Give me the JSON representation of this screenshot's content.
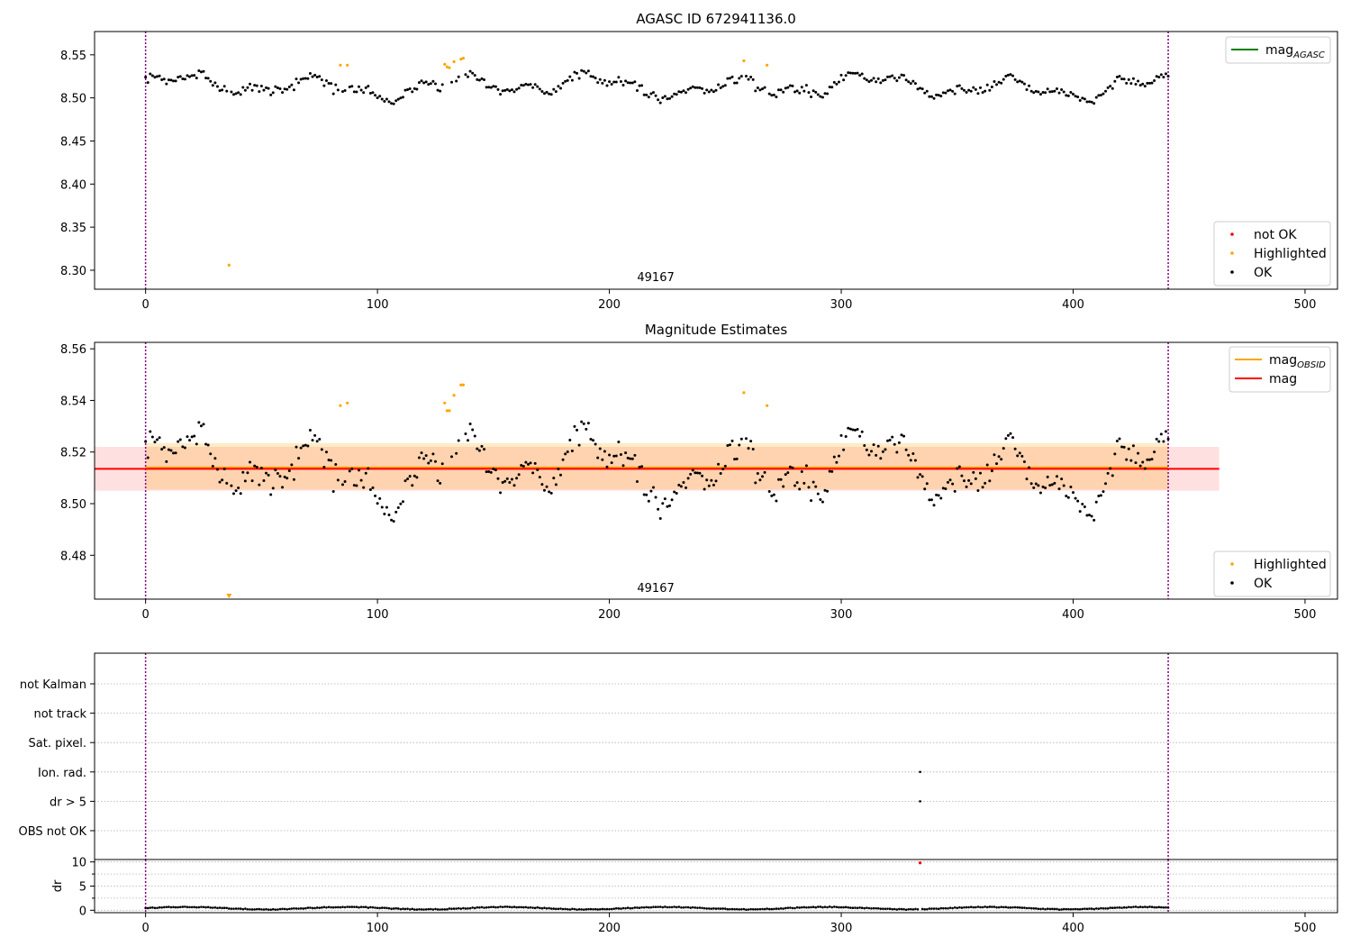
{
  "chart_data": [
    {
      "type": "scatter",
      "title": "AGASC ID 672941136.0",
      "xlabel": "",
      "ylabel": "",
      "xlim": [
        -22,
        514
      ],
      "ylim": [
        8.278,
        8.577
      ],
      "xticks": [
        0,
        100,
        200,
        300,
        400,
        500
      ],
      "yticks": [
        8.3,
        8.35,
        8.4,
        8.45,
        8.5,
        8.55
      ],
      "ytick_labels": [
        "8.30",
        "8.35",
        "8.40",
        "8.45",
        "8.50",
        "8.55"
      ],
      "obsid_label": "49167",
      "obsid_label_x": 220,
      "vlines": [
        0,
        441
      ],
      "lines": [
        {
          "name": "mag_AGASC",
          "color": "#008000",
          "value": null
        }
      ],
      "legend_upper": [
        {
          "label": "mag",
          "sub": "AGASC",
          "color": "#008000",
          "kind": "line"
        }
      ],
      "legend_lower": [
        {
          "label": "not OK",
          "color": "#ff0000",
          "kind": "point"
        },
        {
          "label": "Highlighted",
          "color": "#ffa500",
          "kind": "point"
        },
        {
          "label": "OK",
          "color": "#000000",
          "kind": "point"
        }
      ],
      "highlighted_points": [
        {
          "x": 36,
          "y": 8.306
        },
        {
          "x": 84,
          "y": 8.538
        },
        {
          "x": 87,
          "y": 8.538
        },
        {
          "x": 129,
          "y": 8.539
        },
        {
          "x": 130,
          "y": 8.536
        },
        {
          "x": 131,
          "y": 8.535
        },
        {
          "x": 133,
          "y": 8.542
        },
        {
          "x": 136,
          "y": 8.545
        },
        {
          "x": 137,
          "y": 8.546
        },
        {
          "x": 258,
          "y": 8.543
        },
        {
          "x": 268,
          "y": 8.538
        }
      ]
    },
    {
      "type": "scatter",
      "title": "Magnitude Estimates",
      "xlabel": "",
      "ylabel": "",
      "xlim": [
        -22,
        514
      ],
      "ylim": [
        8.463,
        8.5625
      ],
      "xticks": [
        0,
        100,
        200,
        300,
        400,
        500
      ],
      "yticks": [
        8.48,
        8.5,
        8.52,
        8.54,
        8.56
      ],
      "ytick_labels": [
        "8.48",
        "8.50",
        "8.52",
        "8.54",
        "8.56"
      ],
      "obsid_label": "49167",
      "obsid_label_x": 220,
      "vlines": [
        0,
        441
      ],
      "mag_line": {
        "value": 8.5135,
        "color": "#ff0000",
        "x_range": [
          -22,
          463
        ],
        "band": [
          8.505,
          8.522
        ]
      },
      "mag_obsid_line": {
        "value": 8.514,
        "color": "#ffa500",
        "x_range": [
          0,
          441
        ],
        "band": [
          8.5055,
          8.5235
        ]
      },
      "legend_upper": [
        {
          "label": "mag",
          "sub": "OBSID",
          "color": "#ffa500",
          "kind": "line"
        },
        {
          "label": "mag",
          "sub": "",
          "color": "#ff0000",
          "kind": "line"
        }
      ],
      "legend_lower": [
        {
          "label": "Highlighted",
          "color": "#ffa500",
          "kind": "point"
        },
        {
          "label": "OK",
          "color": "#000000",
          "kind": "point"
        }
      ],
      "highlighted_points": [
        {
          "x": 84,
          "y": 8.538
        },
        {
          "x": 87,
          "y": 8.539
        },
        {
          "x": 129,
          "y": 8.539
        },
        {
          "x": 130,
          "y": 8.536
        },
        {
          "x": 131,
          "y": 8.536
        },
        {
          "x": 133,
          "y": 8.542
        },
        {
          "x": 136,
          "y": 8.546
        },
        {
          "x": 137,
          "y": 8.546
        },
        {
          "x": 258,
          "y": 8.543
        },
        {
          "x": 268,
          "y": 8.538
        }
      ],
      "below_range_markers": [
        {
          "x": 36,
          "color": "#ffa500"
        }
      ]
    },
    {
      "type": "scatter",
      "title": "",
      "xlabel": "",
      "ylabel": "",
      "xlim": [
        -22,
        514
      ],
      "vlines": [
        0,
        441
      ],
      "flag_categories": [
        "not Kalman",
        "not track",
        "Sat. pixel.",
        "Ion. rad.",
        "dr > 5",
        "OBS not OK"
      ],
      "flag_points": [
        {
          "category": "Ion. rad.",
          "x": 334
        },
        {
          "category": "dr > 5",
          "x": 334
        }
      ]
    },
    {
      "type": "scatter",
      "title": "",
      "xlabel": "",
      "ylabel": "dr",
      "xlim": [
        -22,
        514
      ],
      "ylim": [
        -0.5,
        10.5
      ],
      "xticks": [
        0,
        100,
        200,
        300,
        400,
        500
      ],
      "yticks": [
        0,
        5,
        10
      ],
      "ytick_labels": [
        "0",
        "5",
        "10"
      ],
      "minor_yticks": [
        2.5,
        7.5
      ],
      "vlines": [
        0,
        441
      ],
      "not_ok_points": [
        {
          "x": 334,
          "y": 9.8
        }
      ]
    }
  ]
}
